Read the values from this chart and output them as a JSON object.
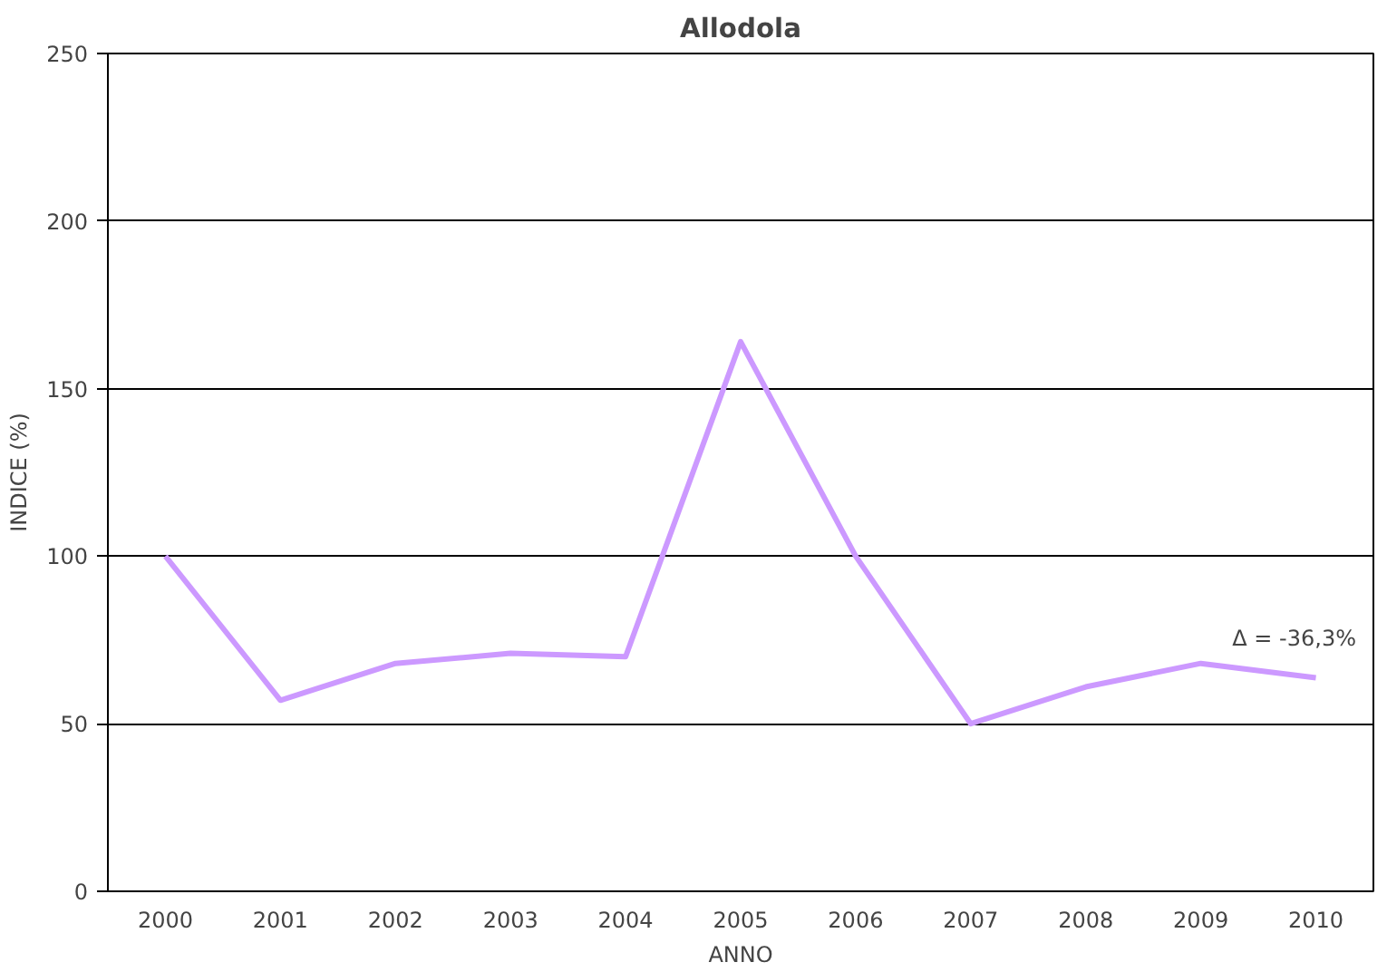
{
  "chart_data": {
    "type": "line",
    "title": "Allodola",
    "xlabel": "ANNO",
    "ylabel": "INDICE (%)",
    "categories": [
      "2000",
      "2001",
      "2002",
      "2003",
      "2004",
      "2005",
      "2006",
      "2007",
      "2008",
      "2009",
      "2010"
    ],
    "series": [
      {
        "color": "#cc99ff",
        "values": [
          100,
          57,
          68,
          71,
          70,
          164,
          100,
          50,
          61,
          68,
          63.7
        ]
      }
    ],
    "ylim": [
      0,
      250
    ],
    "yticks": [
      0,
      50,
      100,
      150,
      200,
      250
    ],
    "grid": "y",
    "line_style": "solid",
    "marker": "none",
    "annotations": [
      "Δ = -36,3%"
    ]
  }
}
